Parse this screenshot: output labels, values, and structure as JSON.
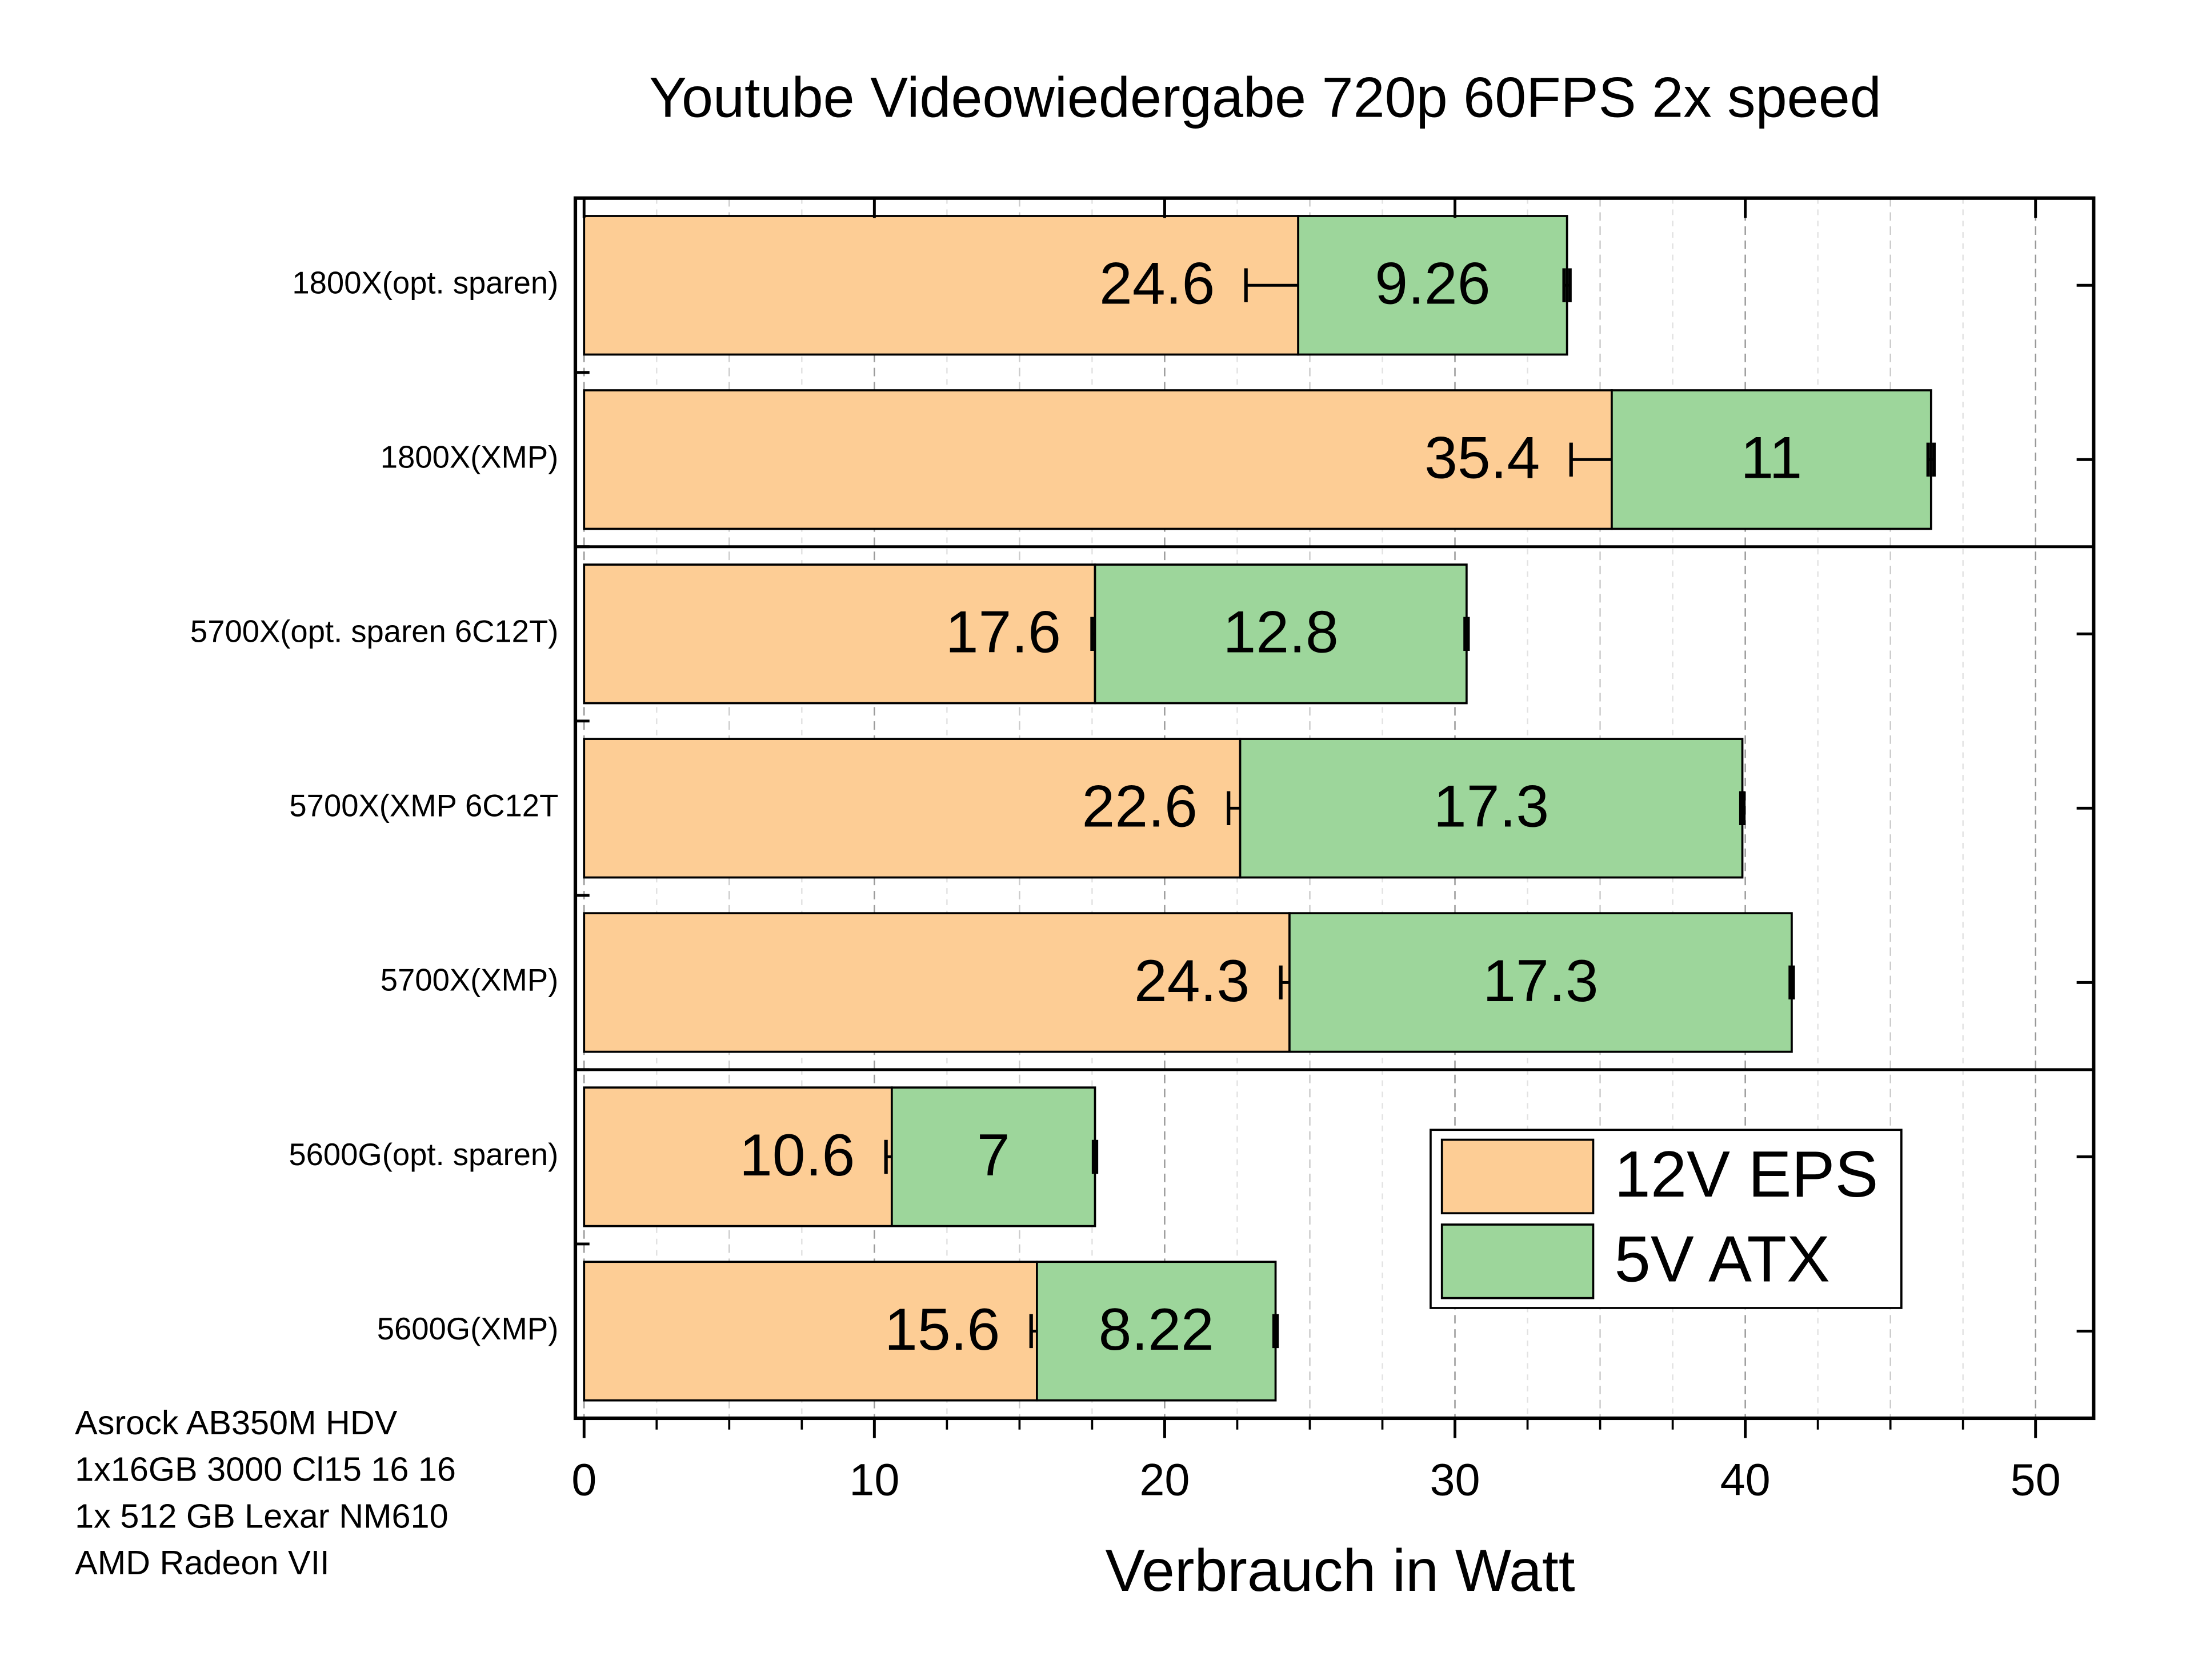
{
  "chart_data": {
    "type": "stacked-bar-horizontal",
    "title": "Youtube Videowiedergabe 720p 60FPS 2x speed",
    "x_label": "Verbrauch in Watt",
    "categories": [
      "1800X(opt. sparen)",
      "1800X(XMP)",
      "5700X(opt. sparen 6C12T)",
      "5700X(XMP 6C12T",
      "5700X(XMP)",
      "5600G(opt. sparen)",
      "5600G(XMP)"
    ],
    "series": [
      {
        "name": "12V EPS",
        "color": "#fdcd95",
        "values": [
          24.6,
          35.4,
          17.6,
          22.6,
          24.3,
          10.6,
          15.6
        ],
        "errors": [
          1.8,
          1.4,
          0.1,
          0.4,
          0.3,
          0.2,
          0.2
        ]
      },
      {
        "name": "5V ATX",
        "color": "#9dd69b",
        "values": [
          9.26,
          11,
          12.8,
          17.3,
          17.3,
          7,
          8.22
        ],
        "errors": [
          0.1,
          0.1,
          0.05,
          0.05,
          0.05,
          0.05,
          0.05
        ]
      }
    ],
    "xlim": [
      -0.3,
      52
    ],
    "xticks": [
      0,
      10,
      20,
      30,
      40,
      50
    ],
    "grid": true,
    "legend": "lower right",
    "annotations": [
      "Asrock AB350M HDV",
      "1x16GB 3000 Cl15 16 16",
      "1x 512 GB Lexar NM610",
      "AMD Radeon VII"
    ]
  }
}
